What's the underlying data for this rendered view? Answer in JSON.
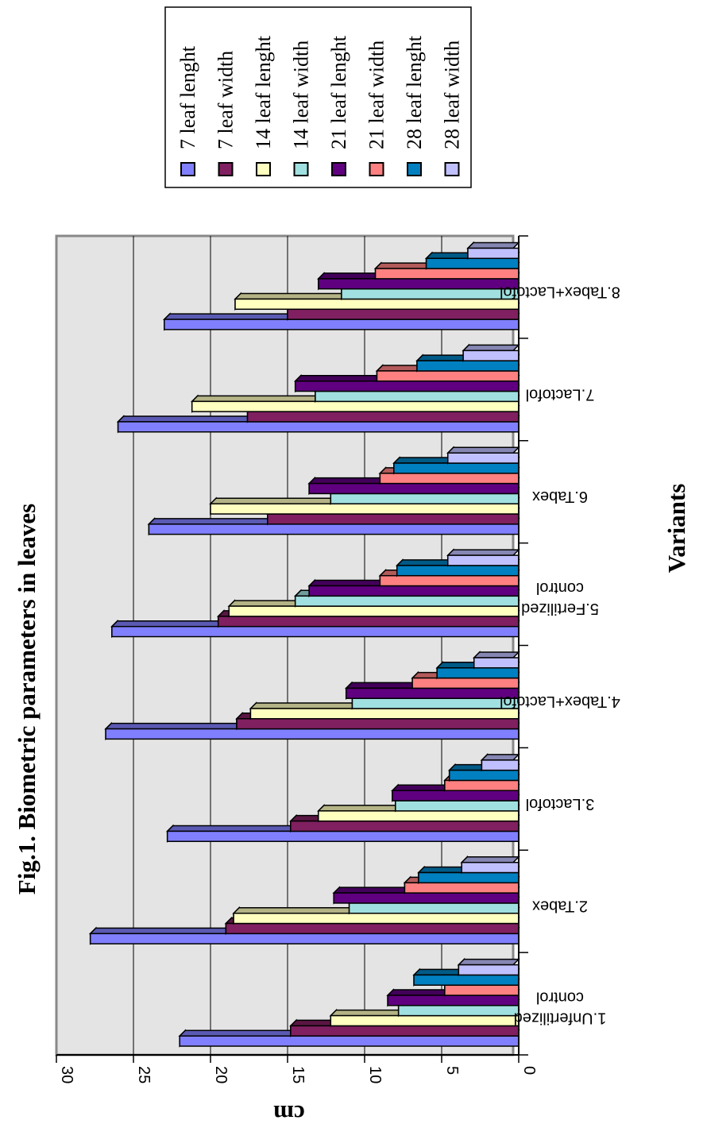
{
  "chart_data": {
    "type": "bar",
    "orientation": "horizontal, rotated 90 degrees",
    "title": "Fig.1. Biometric parameters in leaves",
    "xlabel": "Variants",
    "ylabel": "cm",
    "ylim": [
      0,
      30
    ],
    "yticks": [
      "0",
      "5",
      "10",
      "15",
      "20",
      "25",
      "30"
    ],
    "grid": true,
    "legend_position": "top-right",
    "categories": [
      "1.Unfertilized control",
      "2.Tabex",
      "3.Lactofol",
      "4.Tabex+Lactofol",
      "5.Fertilized control",
      "6.Tabex",
      "7.Lactofol",
      "8.Tabex+Lactofol"
    ],
    "series": [
      {
        "name": "7 leaf lenght",
        "color": "#8080ff",
        "values": [
          22,
          27.8,
          22.8,
          26.8,
          26.4,
          24,
          26,
          23
        ]
      },
      {
        "name": "7 leaf width",
        "color": "#802060",
        "values": [
          14.8,
          19,
          14.8,
          18.3,
          19.5,
          16.3,
          17.6,
          15
        ]
      },
      {
        "name": "14 leaf lenght",
        "color": "#ffffc0",
        "values": [
          12.2,
          18.5,
          13,
          17.4,
          18.8,
          20,
          21.2,
          18.4
        ]
      },
      {
        "name": "14 leaf width",
        "color": "#a0e0e0",
        "values": [
          7.8,
          11,
          8,
          10.8,
          14.5,
          12.2,
          13.2,
          11.5
        ]
      },
      {
        "name": "21 leaf lenght",
        "color": "#600080",
        "values": [
          8.5,
          12,
          8.2,
          11.2,
          13.6,
          13.6,
          14.5,
          13
        ]
      },
      {
        "name": "21 leaf width",
        "color": "#ff8080",
        "values": [
          4.8,
          7.4,
          4.8,
          6.9,
          9,
          9,
          9.2,
          9.3
        ]
      },
      {
        "name": "28 leaf lenght",
        "color": "#0080c0",
        "values": [
          6.8,
          6.5,
          4.5,
          5.3,
          7.9,
          8.1,
          6.6,
          6
        ]
      },
      {
        "name": "28 leaf width",
        "color": "#c0c0ff",
        "values": [
          3.9,
          3.7,
          2.4,
          2.9,
          4.6,
          4.6,
          3.6,
          3.3
        ]
      }
    ]
  }
}
